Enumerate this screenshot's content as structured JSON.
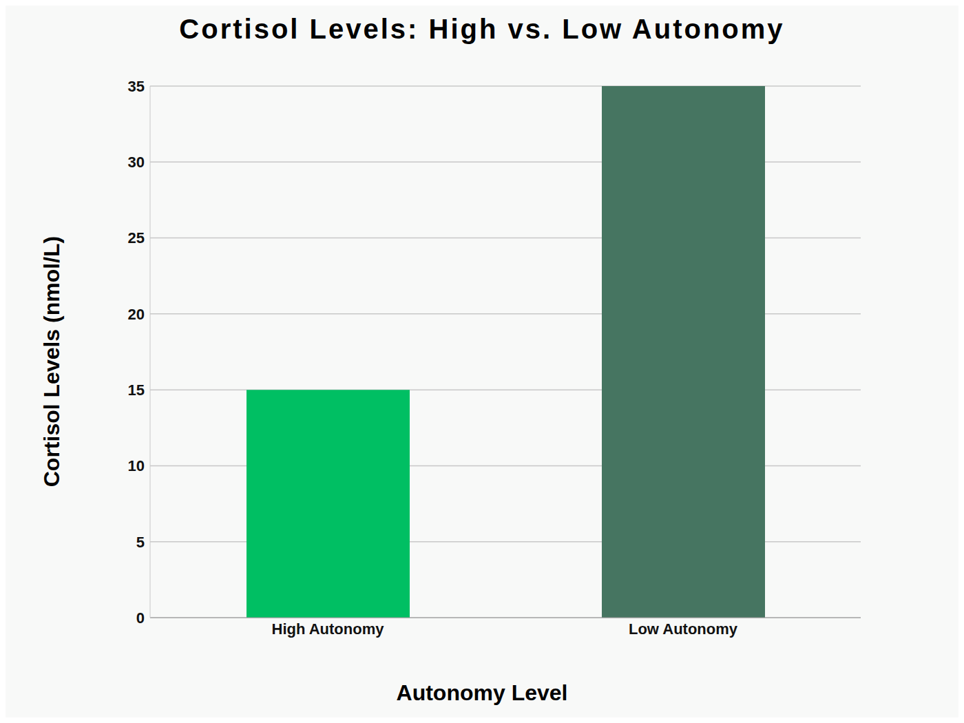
{
  "chart_data": {
    "type": "bar",
    "title": "Cortisol Levels: High vs. Low Autonomy",
    "x_label": "Autonomy Level",
    "y_label": "Cortisol Levels (nmol/L)",
    "categories": [
      "High Autonomy",
      "Low Autonomy"
    ],
    "values": [
      15,
      35
    ],
    "colors": [
      "#00bf63",
      "#467561"
    ],
    "ylim": [
      0,
      35
    ],
    "yticks": [
      0,
      5,
      10,
      15,
      20,
      25,
      30,
      35
    ],
    "grid": true
  }
}
